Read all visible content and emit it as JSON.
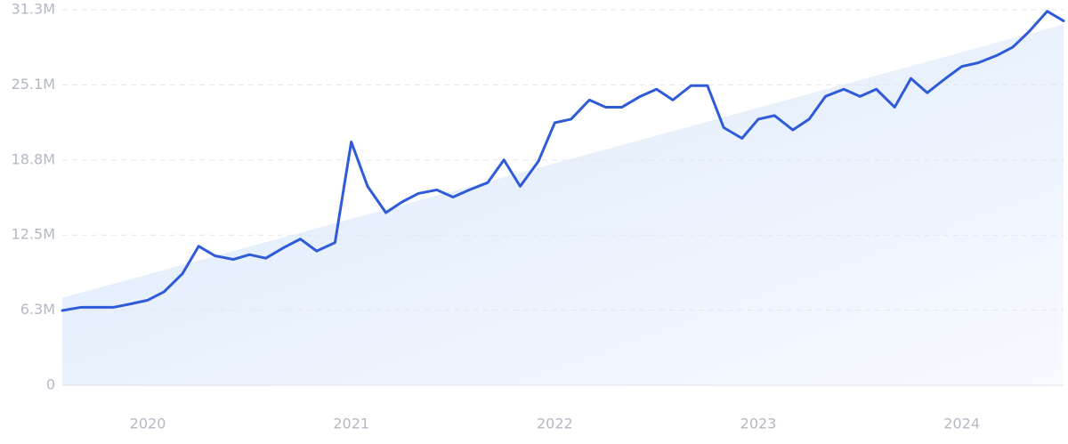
{
  "chart_data": {
    "type": "line",
    "x": [
      2019.58,
      2019.67,
      2019.75,
      2019.83,
      2019.92,
      2020.0,
      2020.08,
      2020.17,
      2020.25,
      2020.33,
      2020.42,
      2020.5,
      2020.58,
      2020.67,
      2020.75,
      2020.83,
      2020.92,
      2021.0,
      2021.08,
      2021.17,
      2021.25,
      2021.33,
      2021.42,
      2021.5,
      2021.58,
      2021.67,
      2021.75,
      2021.83,
      2021.92,
      2022.0,
      2022.08,
      2022.17,
      2022.25,
      2022.33,
      2022.42,
      2022.5,
      2022.58,
      2022.67,
      2022.75,
      2022.83,
      2022.92,
      2023.0,
      2023.08,
      2023.17,
      2023.25,
      2023.33,
      2023.42,
      2023.5,
      2023.58,
      2023.67,
      2023.75,
      2023.83,
      2023.92,
      2024.0,
      2024.08,
      2024.17,
      2024.25,
      2024.33,
      2024.42,
      2024.5
    ],
    "series": [
      {
        "color": "#2f5bd9",
        "values": [
          6240000,
          6500000,
          6500000,
          6500000,
          6800000,
          7100000,
          7800000,
          9300000,
          11600000,
          10800000,
          10500000,
          10900000,
          10600000,
          11500000,
          12200000,
          11200000,
          11900000,
          20300000,
          16600000,
          14400000,
          15300000,
          16000000,
          16300000,
          15700000,
          16300000,
          16900000,
          18800000,
          16600000,
          18700000,
          21900000,
          22200000,
          23800000,
          23200000,
          23200000,
          24100000,
          24700000,
          23800000,
          25000000,
          25000000,
          21500000,
          20600000,
          22200000,
          22500000,
          21300000,
          22200000,
          24100000,
          24700000,
          24100000,
          24700000,
          23200000,
          25600000,
          24400000,
          25600000,
          26600000,
          26900000,
          27500000,
          28200000,
          29500000,
          31200000,
          30400000
        ]
      }
    ],
    "trend": {
      "colors": [
        "#dbe8fa",
        "#f7faff"
      ],
      "values": [
        7300000,
        30100000
      ]
    },
    "xlim": [
      2019.58,
      2024.5
    ],
    "xticks": [
      2020,
      2021,
      2022,
      2023,
      2024
    ],
    "ylim": [
      0,
      31325000
    ],
    "yticks": [
      0,
      {
        "value": 6265000,
        "label": "6.3M"
      },
      {
        "value": 12530000,
        "label": "12.5M"
      },
      {
        "value": 18795000,
        "label": "18.8M"
      },
      {
        "value": 25060000,
        "label": "25.1M"
      },
      {
        "value": 31325000,
        "label": "31.3M"
      }
    ],
    "grid": true
  }
}
